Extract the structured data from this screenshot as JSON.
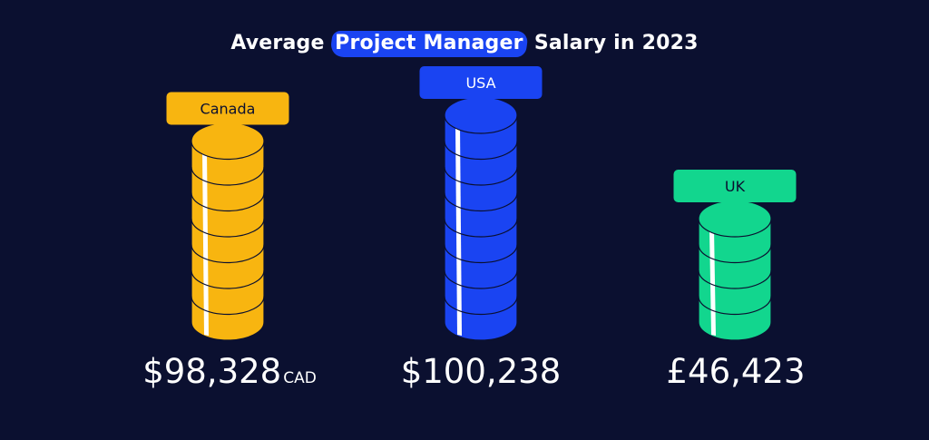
{
  "title": {
    "before": "Average",
    "highlight": "Project Manager",
    "after": "Salary in 2023"
  },
  "colors": {
    "background": "#0b1030",
    "highlight": "#1a44f2",
    "canada": "#f8b510",
    "usa": "#1a44f2",
    "uk": "#12d68e"
  },
  "chart_data": {
    "type": "bar",
    "title": "Average Project Manager Salary in 2023",
    "categories": [
      "Canada",
      "USA",
      "UK"
    ],
    "series": [
      {
        "values": [
          98328,
          100238,
          46423
        ],
        "display": [
          "$98,328",
          "$100,238",
          "£46,423"
        ],
        "units": [
          "CAD",
          "",
          ""
        ]
      }
    ],
    "coin_counts": [
      7,
      8,
      4
    ],
    "colors": [
      "#f8b510",
      "#1a44f2",
      "#12d68e"
    ]
  }
}
